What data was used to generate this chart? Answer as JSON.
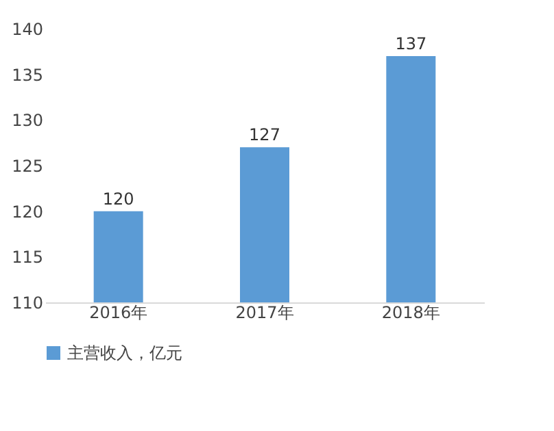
{
  "chart_data": {
    "type": "bar",
    "categories": [
      "2016年",
      "2017年",
      "2018年"
    ],
    "series": [
      {
        "name": "主营收入，亿元",
        "color": "#5b9bd5",
        "values": [
          120,
          127,
          137
        ]
      }
    ],
    "ylim": [
      110,
      140
    ],
    "yticks": [
      110,
      115,
      120,
      125,
      130,
      135,
      140
    ],
    "data_labels": true,
    "legend": "bottom",
    "grid": false
  }
}
